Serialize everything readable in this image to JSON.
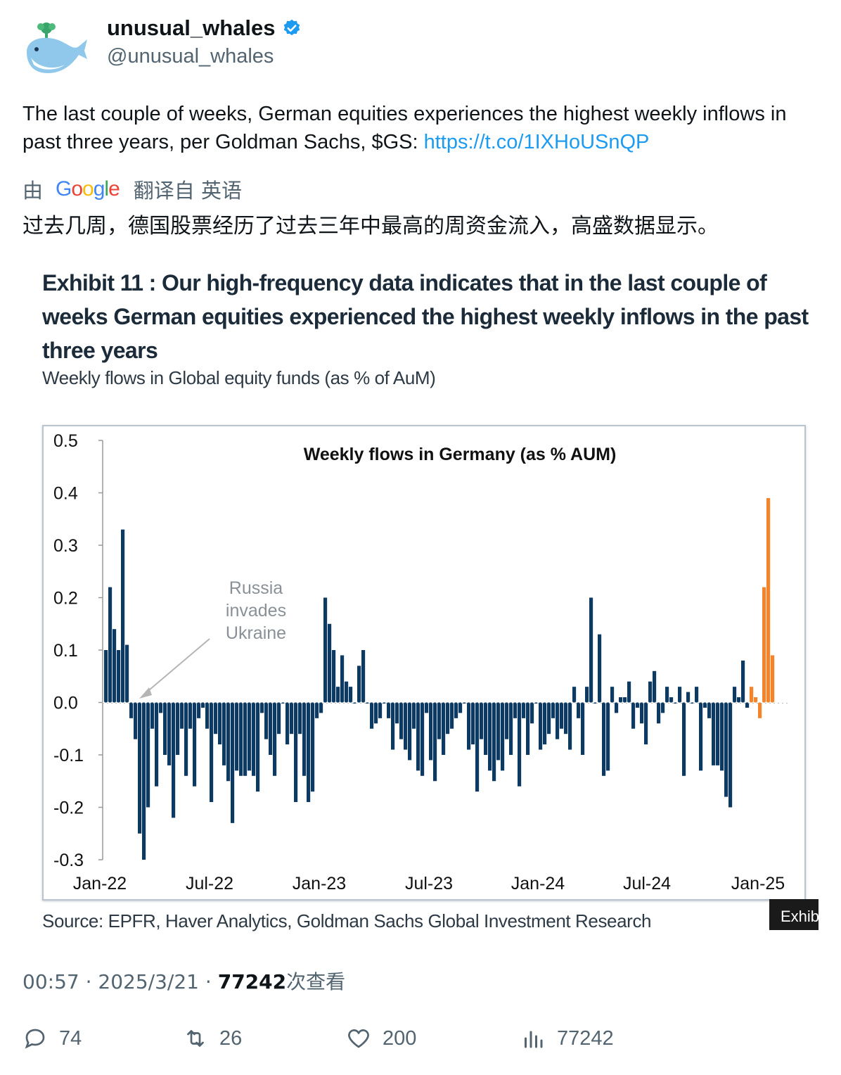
{
  "author": {
    "name": "unusual_whales",
    "handle": "@unusual_whales"
  },
  "tweet": {
    "text": "The last couple of weeks, German equities experiences the highest weekly inflows in past three years, per Goldman Sachs, $GS: ",
    "link": "https://t.co/1IXHoUSnQP",
    "translate_prefix": "由",
    "translate_brand": "Google",
    "translate_suffix": "翻译自 英语",
    "translated_text": "过去几周，德国股票经历了过去三年中最高的周资金流入，高盛数据显示。"
  },
  "figure": {
    "exhibit_title": "Exhibit 11 : Our high-frequency data indicates that in the last couple of weeks German equities experienced the highest weekly inflows in the past three years",
    "exhibit_subtitle": "Weekly flows in Global equity funds (as % of AuM)",
    "source": "Source: EPFR, Haver Analytics, Goldman Sachs Global Investment Research",
    "corner_tag": "Exhib"
  },
  "chart_data": {
    "type": "bar",
    "title": "Weekly flows in Germany (as %  AUM)",
    "xlabel": "",
    "ylabel": "",
    "ylim": [
      -0.3,
      0.5
    ],
    "yticks": [
      "0.5",
      "0.4",
      "0.3",
      "0.2",
      "0.1",
      "0.0",
      "-0.1",
      "-0.2",
      "-0.3"
    ],
    "xticks": [
      "Jan-22",
      "Jul-22",
      "Jan-23",
      "Jul-23",
      "Jan-24",
      "Jul-24",
      "Jan-25"
    ],
    "annotation": "Russia invades Ukraine",
    "colors": {
      "normal": "#0c3a63",
      "recent": "#f4832a"
    },
    "values": [
      0.1,
      0.22,
      0.14,
      0.1,
      0.33,
      0.11,
      -0.03,
      -0.07,
      -0.25,
      -0.3,
      -0.2,
      -0.05,
      -0.16,
      -0.02,
      -0.1,
      -0.12,
      -0.22,
      -0.1,
      -0.05,
      -0.14,
      -0.05,
      -0.16,
      -0.03,
      -0.01,
      -0.05,
      -0.19,
      -0.06,
      -0.08,
      -0.12,
      -0.15,
      -0.23,
      -0.13,
      -0.14,
      -0.14,
      -0.13,
      -0.14,
      -0.17,
      -0.02,
      -0.07,
      -0.1,
      -0.14,
      -0.06,
      0.0,
      -0.08,
      -0.06,
      -0.19,
      -0.06,
      -0.14,
      -0.19,
      -0.17,
      -0.03,
      -0.02,
      0.2,
      0.15,
      0.1,
      0.03,
      0.09,
      0.04,
      0.03,
      0.0,
      0.07,
      0.1,
      0.0,
      -0.05,
      -0.04,
      -0.03,
      0.0,
      -0.03,
      -0.09,
      -0.04,
      -0.07,
      -0.09,
      -0.11,
      -0.05,
      -0.13,
      -0.14,
      -0.02,
      -0.11,
      -0.15,
      -0.07,
      -0.1,
      -0.06,
      -0.05,
      -0.03,
      -0.02,
      0.0,
      -0.09,
      -0.08,
      -0.17,
      -0.07,
      -0.1,
      -0.13,
      -0.15,
      -0.11,
      -0.13,
      -0.07,
      -0.1,
      -0.03,
      -0.16,
      -0.03,
      -0.1,
      -0.04,
      0.0,
      -0.09,
      -0.08,
      -0.06,
      -0.03,
      -0.07,
      -0.05,
      -0.06,
      -0.09,
      0.03,
      -0.03,
      -0.1,
      0.03,
      0.2,
      0.0,
      0.13,
      -0.14,
      -0.13,
      0.03,
      -0.02,
      0.01,
      0.01,
      0.04,
      -0.05,
      -0.01,
      -0.04,
      -0.08,
      0.04,
      0.06,
      -0.04,
      -0.02,
      0.03,
      0.01,
      0.0,
      0.03,
      -0.14,
      0.02,
      0.0,
      0.03,
      -0.13,
      -0.01,
      -0.03,
      -0.12,
      -0.12,
      -0.13,
      -0.18,
      -0.2,
      0.03,
      0.01,
      0.08,
      -0.01,
      0.03,
      0.01,
      -0.03,
      0.22,
      0.39,
      0.09
    ],
    "recent_start_index": 153
  },
  "footer": {
    "time": "00:57",
    "date": "2025/3/21",
    "views_count": "77242",
    "views_label": "次查看"
  },
  "actions": {
    "replies": "74",
    "retweets": "26",
    "likes": "200",
    "views": "77242"
  }
}
